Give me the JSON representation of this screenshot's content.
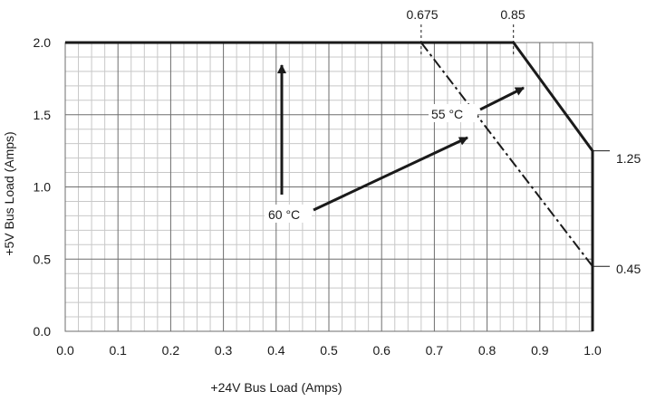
{
  "chart_data": {
    "type": "line",
    "xlabel": "+24V Bus Load (Amps)",
    "ylabel": "+5V Bus Load (Amps)",
    "xlim": [
      0,
      1.0
    ],
    "ylim": [
      0,
      2.0
    ],
    "x_ticks": [
      "0.0",
      "0.1",
      "0.2",
      "0.3",
      "0.4",
      "0.5",
      "0.6",
      "0.7",
      "0.8",
      "0.9",
      "1.0"
    ],
    "y_ticks": [
      "0.0",
      "0.5",
      "1.0",
      "1.5",
      "2.0"
    ],
    "grid": true,
    "series": [
      {
        "name": "55 °C",
        "style": "solid",
        "points": [
          [
            0.0,
            2.0
          ],
          [
            0.85,
            2.0
          ],
          [
            1.0,
            1.25
          ],
          [
            1.0,
            0.0
          ]
        ]
      },
      {
        "name": "60 °C",
        "style": "dash-dot",
        "points": [
          [
            0.675,
            2.0
          ],
          [
            1.0,
            0.45
          ]
        ]
      }
    ],
    "annotations": {
      "top_values": [
        "0.675",
        "0.85"
      ],
      "right_values": [
        "1.25",
        "0.45"
      ],
      "label_60": "60 °C",
      "label_55": "55 °C"
    }
  },
  "colors": {
    "line": "#1a1a1a",
    "grid_major": "#6e6e6e",
    "grid_minor": "#c8c8c8"
  }
}
